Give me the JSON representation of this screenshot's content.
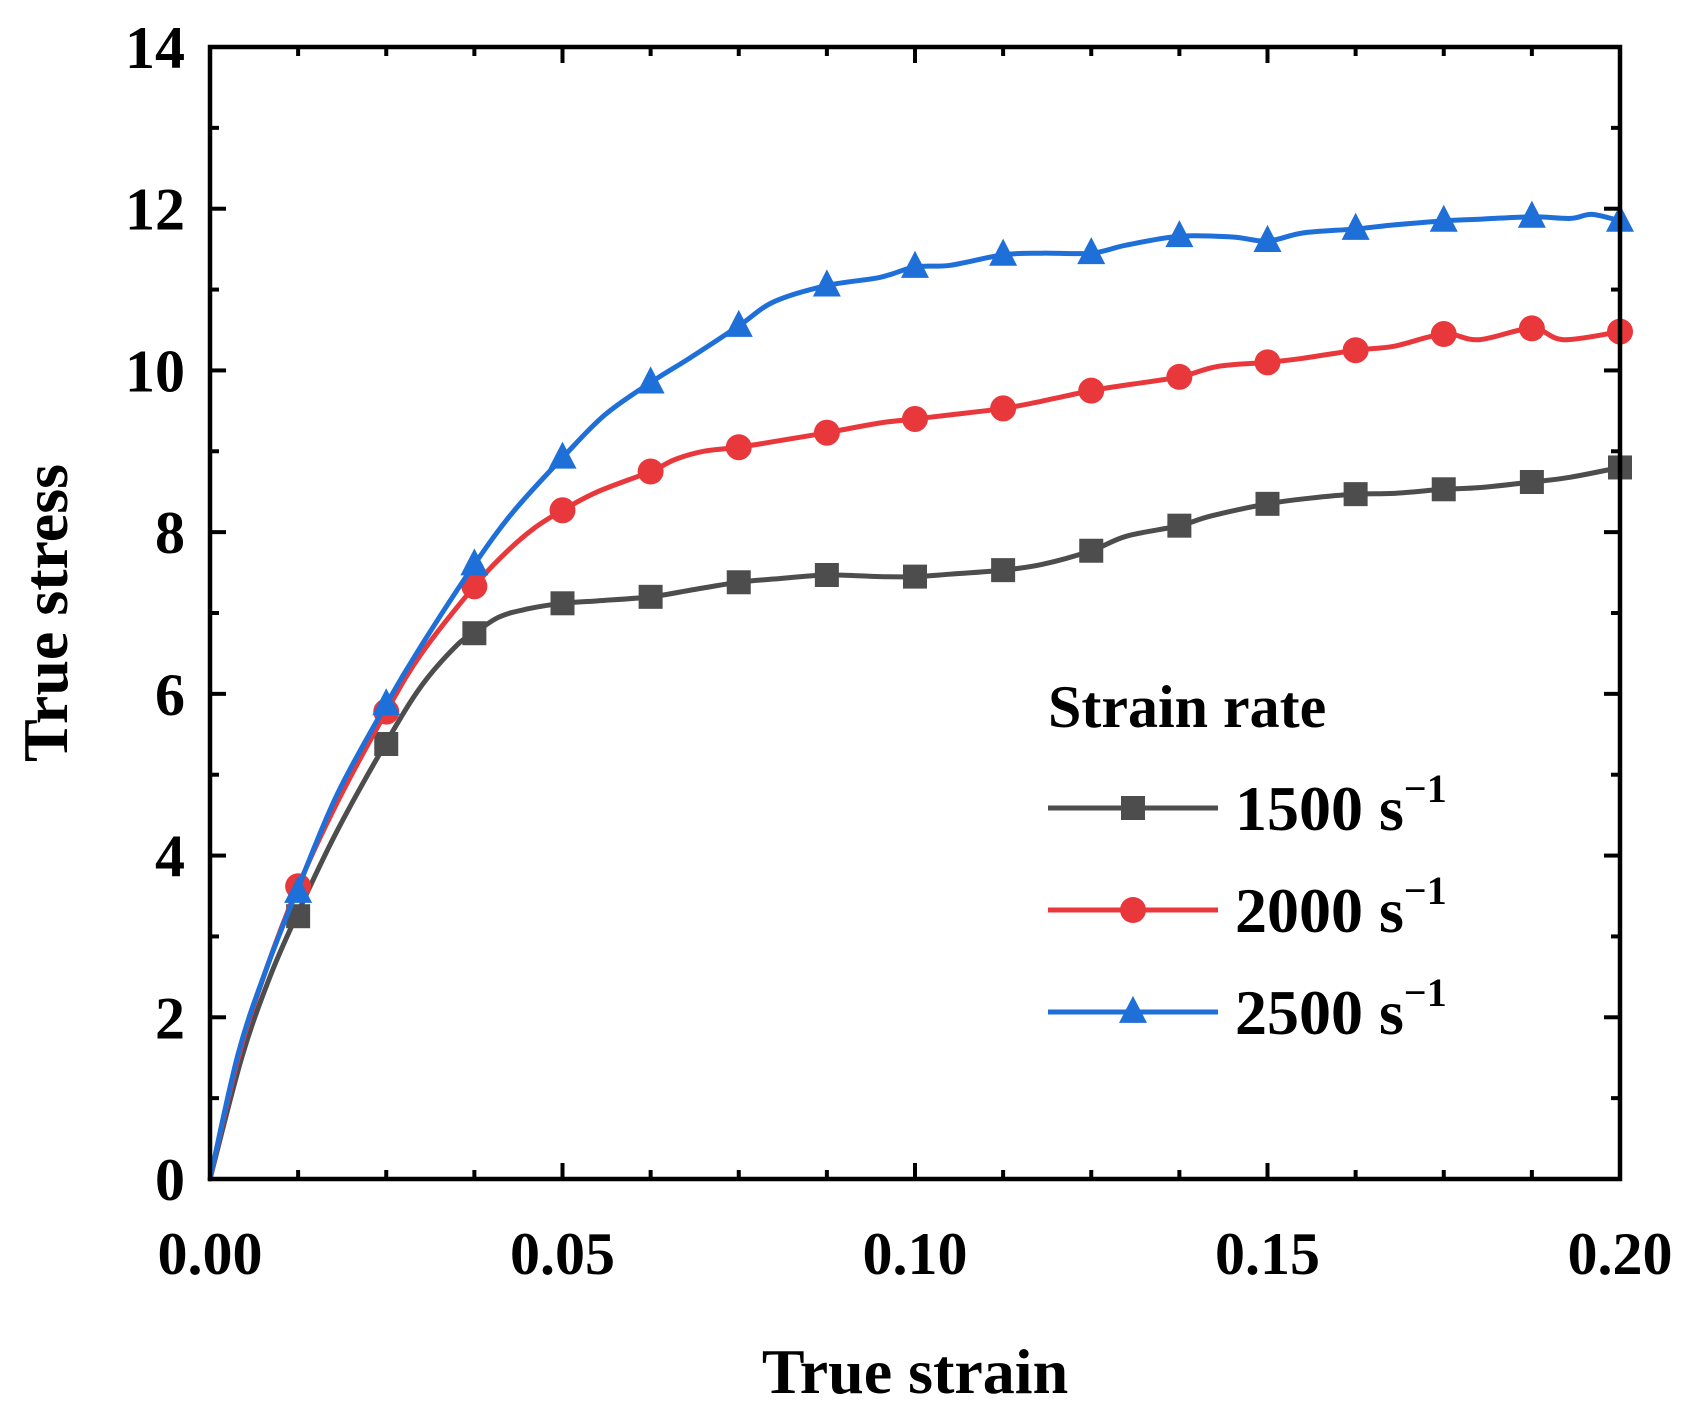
{
  "chart_data": {
    "type": "line",
    "title": "",
    "xlabel": "True strain",
    "ylabel": "True stress",
    "xlim": [
      0,
      0.2
    ],
    "ylim": [
      0,
      14
    ],
    "x_ticks": [
      0,
      0.05,
      0.1,
      0.15,
      0.2
    ],
    "x_tick_labels": [
      "0.00",
      "0.05",
      "0.10",
      "0.15",
      "0.20"
    ],
    "y_ticks": [
      0,
      2,
      4,
      6,
      8,
      10,
      12,
      14
    ],
    "y_tick_labels": [
      "0",
      "2",
      "4",
      "6",
      "8",
      "10",
      "12",
      "14"
    ],
    "grid": false,
    "legend": {
      "title": "Strain rate",
      "position": "bottom-right",
      "unit_label": "s",
      "unit_exponent": "−1"
    },
    "series": [
      {
        "name": "1500",
        "color": "#4d4d4d",
        "marker": "square",
        "points": [
          [
            0,
            0
          ],
          [
            0.0045,
            1.5
          ],
          [
            0.0085,
            2.5
          ],
          [
            0.0125,
            3.3
          ],
          [
            0.018,
            4.3
          ],
          [
            0.025,
            5.4
          ],
          [
            0.03,
            6.1
          ],
          [
            0.035,
            6.6
          ],
          [
            0.0375,
            6.75
          ],
          [
            0.041,
            6.95
          ],
          [
            0.045,
            7.05
          ],
          [
            0.05,
            7.12
          ],
          [
            0.055,
            7.15
          ],
          [
            0.0625,
            7.2
          ],
          [
            0.068,
            7.28
          ],
          [
            0.075,
            7.38
          ],
          [
            0.08,
            7.42
          ],
          [
            0.0875,
            7.47
          ],
          [
            0.095,
            7.45
          ],
          [
            0.1,
            7.45
          ],
          [
            0.105,
            7.48
          ],
          [
            0.1125,
            7.53
          ],
          [
            0.118,
            7.6
          ],
          [
            0.125,
            7.77
          ],
          [
            0.13,
            7.95
          ],
          [
            0.1375,
            8.08
          ],
          [
            0.142,
            8.2
          ],
          [
            0.15,
            8.35
          ],
          [
            0.156,
            8.42
          ],
          [
            0.1625,
            8.47
          ],
          [
            0.168,
            8.48
          ],
          [
            0.175,
            8.53
          ],
          [
            0.18,
            8.55
          ],
          [
            0.1875,
            8.62
          ],
          [
            0.193,
            8.68
          ],
          [
            0.2,
            8.8
          ]
        ],
        "marker_points": [
          [
            0.0125,
            3.25
          ],
          [
            0.025,
            5.38
          ],
          [
            0.0375,
            6.75
          ],
          [
            0.05,
            7.12
          ],
          [
            0.0625,
            7.2
          ],
          [
            0.075,
            7.38
          ],
          [
            0.0875,
            7.47
          ],
          [
            0.1,
            7.45
          ],
          [
            0.1125,
            7.53
          ],
          [
            0.125,
            7.77
          ],
          [
            0.1375,
            8.08
          ],
          [
            0.15,
            8.35
          ],
          [
            0.1625,
            8.47
          ],
          [
            0.175,
            8.53
          ],
          [
            0.1875,
            8.62
          ],
          [
            0.2,
            8.8
          ]
        ]
      },
      {
        "name": "2000",
        "color": "#e8383c",
        "marker": "circle",
        "points": [
          [
            0,
            0
          ],
          [
            0.004,
            1.5
          ],
          [
            0.008,
            2.6
          ],
          [
            0.0125,
            3.62
          ],
          [
            0.018,
            4.65
          ],
          [
            0.025,
            5.78
          ],
          [
            0.03,
            6.5
          ],
          [
            0.0375,
            7.33
          ],
          [
            0.042,
            7.75
          ],
          [
            0.046,
            8.05
          ],
          [
            0.05,
            8.27
          ],
          [
            0.055,
            8.5
          ],
          [
            0.0625,
            8.75
          ],
          [
            0.066,
            8.9
          ],
          [
            0.07,
            9.0
          ],
          [
            0.075,
            9.05
          ],
          [
            0.08,
            9.12
          ],
          [
            0.0875,
            9.23
          ],
          [
            0.095,
            9.35
          ],
          [
            0.1,
            9.4
          ],
          [
            0.105,
            9.45
          ],
          [
            0.1125,
            9.53
          ],
          [
            0.118,
            9.62
          ],
          [
            0.125,
            9.75
          ],
          [
            0.13,
            9.82
          ],
          [
            0.1375,
            9.92
          ],
          [
            0.143,
            10.05
          ],
          [
            0.15,
            10.1
          ],
          [
            0.155,
            10.15
          ],
          [
            0.1625,
            10.25
          ],
          [
            0.168,
            10.3
          ],
          [
            0.175,
            10.45
          ],
          [
            0.18,
            10.38
          ],
          [
            0.1875,
            10.52
          ],
          [
            0.192,
            10.38
          ],
          [
            0.2,
            10.48
          ]
        ],
        "marker_points": [
          [
            0.0125,
            3.62
          ],
          [
            0.025,
            5.78
          ],
          [
            0.0375,
            7.33
          ],
          [
            0.05,
            8.27
          ],
          [
            0.0625,
            8.75
          ],
          [
            0.075,
            9.05
          ],
          [
            0.0875,
            9.23
          ],
          [
            0.1,
            9.4
          ],
          [
            0.1125,
            9.53
          ],
          [
            0.125,
            9.75
          ],
          [
            0.1375,
            9.92
          ],
          [
            0.15,
            10.1
          ],
          [
            0.1625,
            10.25
          ],
          [
            0.175,
            10.45
          ],
          [
            0.1875,
            10.52
          ],
          [
            0.2,
            10.48
          ]
        ]
      },
      {
        "name": "2500",
        "color": "#1f6fd8",
        "marker": "triangle",
        "points": [
          [
            0,
            0
          ],
          [
            0.004,
            1.55
          ],
          [
            0.008,
            2.6
          ],
          [
            0.0125,
            3.6
          ],
          [
            0.018,
            4.75
          ],
          [
            0.025,
            5.87
          ],
          [
            0.03,
            6.6
          ],
          [
            0.0375,
            7.6
          ],
          [
            0.043,
            8.25
          ],
          [
            0.05,
            8.92
          ],
          [
            0.056,
            9.45
          ],
          [
            0.0625,
            9.85
          ],
          [
            0.068,
            10.15
          ],
          [
            0.075,
            10.55
          ],
          [
            0.08,
            10.85
          ],
          [
            0.0875,
            11.05
          ],
          [
            0.095,
            11.15
          ],
          [
            0.1,
            11.28
          ],
          [
            0.105,
            11.3
          ],
          [
            0.1125,
            11.43
          ],
          [
            0.118,
            11.45
          ],
          [
            0.125,
            11.45
          ],
          [
            0.13,
            11.55
          ],
          [
            0.1375,
            11.66
          ],
          [
            0.145,
            11.65
          ],
          [
            0.15,
            11.6
          ],
          [
            0.155,
            11.7
          ],
          [
            0.1625,
            11.75
          ],
          [
            0.168,
            11.8
          ],
          [
            0.175,
            11.85
          ],
          [
            0.18,
            11.87
          ],
          [
            0.1875,
            11.9
          ],
          [
            0.193,
            11.88
          ],
          [
            0.196,
            11.93
          ],
          [
            0.2,
            11.85
          ]
        ],
        "marker_points": [
          [
            0.0125,
            3.55
          ],
          [
            0.025,
            5.87
          ],
          [
            0.0375,
            7.6
          ],
          [
            0.05,
            8.92
          ],
          [
            0.0625,
            9.85
          ],
          [
            0.075,
            10.55
          ],
          [
            0.0875,
            11.05
          ],
          [
            0.1,
            11.28
          ],
          [
            0.1125,
            11.43
          ],
          [
            0.125,
            11.45
          ],
          [
            0.1375,
            11.66
          ],
          [
            0.15,
            11.6
          ],
          [
            0.1625,
            11.75
          ],
          [
            0.175,
            11.85
          ],
          [
            0.1875,
            11.9
          ],
          [
            0.2,
            11.85
          ]
        ]
      }
    ]
  }
}
